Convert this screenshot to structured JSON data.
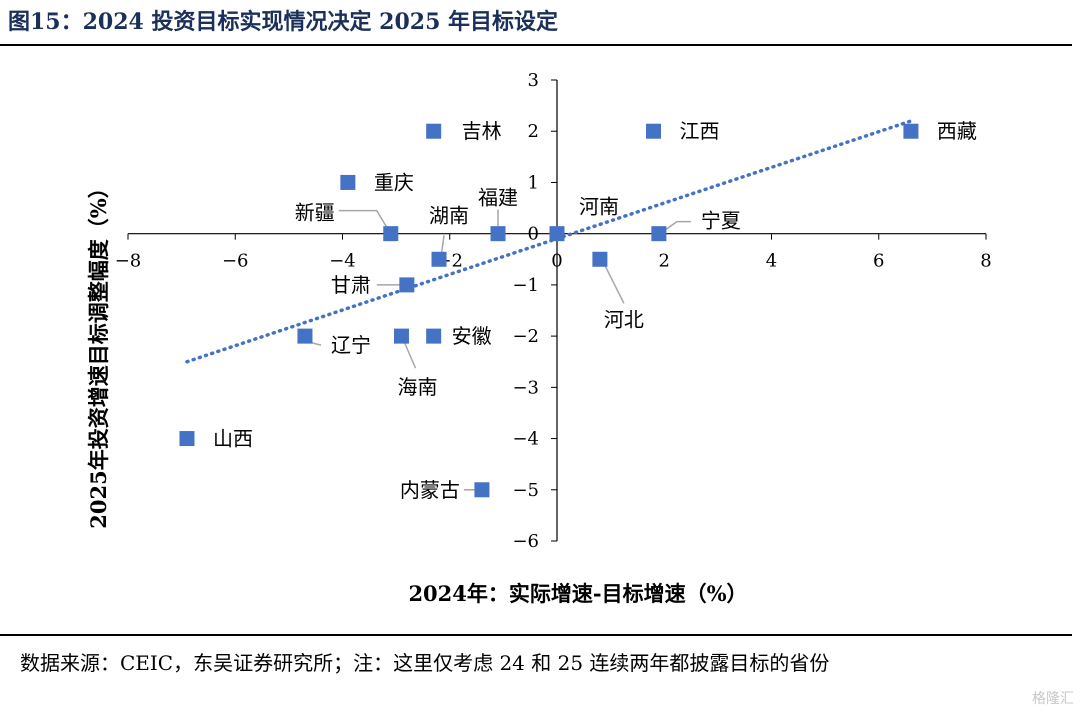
{
  "figure_title": "图15：2024 投资目标实现情况决定 2025 年目标设定",
  "source_note": "数据来源：CEIC，东吴证券研究所；注：这里仅考虑 24 和 25 连续两年都披露目标的省份",
  "watermark": "格隆汇",
  "colors": {
    "marker": "#4472c4",
    "trend": "#4472c4",
    "leader": "#a6a6a6",
    "title": "#1a2f5a"
  },
  "chart_data": {
    "type": "scatter",
    "xlabel": "2024年：实际增速-目标增速（%）",
    "ylabel": "2025年投资增速目标调整幅度（%）",
    "xlim": [
      -8,
      8
    ],
    "ylim": [
      -6,
      3
    ],
    "x_ticks": [
      "−8",
      "−6",
      "−4",
      "−2",
      "0",
      "2",
      "4",
      "6",
      "8"
    ],
    "y_ticks": [
      "3",
      "2",
      "1",
      "0",
      "−1",
      "−2",
      "−3",
      "−4",
      "−5",
      "−6"
    ],
    "x_tick_values": [
      -8,
      -6,
      -4,
      -2,
      0,
      2,
      4,
      6,
      8
    ],
    "y_tick_values": [
      3,
      2,
      1,
      0,
      -1,
      -2,
      -3,
      -4,
      -5,
      -6
    ],
    "grid": false,
    "legend": "none",
    "trendline": {
      "style": "dotted",
      "from": {
        "x": -6.9,
        "y": -2.5
      },
      "to": {
        "x": 6.6,
        "y": 2.2
      }
    },
    "points": [
      {
        "name": "吉林",
        "x": -2.3,
        "y": 2
      },
      {
        "name": "江西",
        "x": 1.8,
        "y": 2
      },
      {
        "name": "西藏",
        "x": 6.6,
        "y": 2
      },
      {
        "name": "重庆",
        "x": -3.9,
        "y": 1
      },
      {
        "name": "新疆",
        "x": -3.1,
        "y": 0
      },
      {
        "name": "湖南",
        "x": -2.2,
        "y": -0.5
      },
      {
        "name": "福建",
        "x": -1.1,
        "y": 0
      },
      {
        "name": "河南",
        "x": 0,
        "y": 0
      },
      {
        "name": "宁夏",
        "x": 1.9,
        "y": 0
      },
      {
        "name": "河北",
        "x": 0.8,
        "y": -0.5
      },
      {
        "name": "甘肃",
        "x": -2.8,
        "y": -1
      },
      {
        "name": "辽宁",
        "x": -4.7,
        "y": -2
      },
      {
        "name": "海南",
        "x": -2.9,
        "y": -2
      },
      {
        "name": "安徽",
        "x": -2.3,
        "y": -2
      },
      {
        "name": "山西",
        "x": -6.9,
        "y": -4
      },
      {
        "name": "内蒙古",
        "x": -1.4,
        "y": -5
      }
    ]
  }
}
